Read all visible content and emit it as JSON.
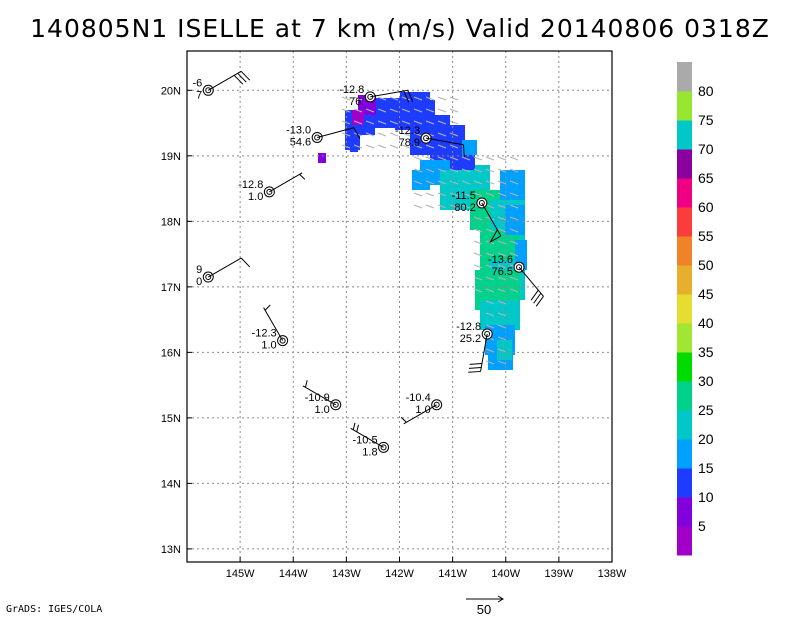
{
  "title": "140805N1  ISELLE  at 7 km (m/s)  Valid 20140806  0318Z",
  "footer": "GrADS: IGES/COLA",
  "scale_label": "50",
  "chart_data": {
    "type": "map",
    "title": "140805N1  ISELLE  at 7 km (m/s)  Valid 20140806  0318Z",
    "xlim": [
      -146,
      -138
    ],
    "ylim": [
      12.8,
      20.6
    ],
    "x_ticks": [
      -145,
      -144,
      -143,
      -142,
      -141,
      -140,
      -139,
      -138
    ],
    "x_tick_labels": [
      "145W",
      "144W",
      "143W",
      "142W",
      "141W",
      "140W",
      "139W",
      "138W"
    ],
    "y_ticks": [
      13,
      14,
      15,
      16,
      17,
      18,
      19,
      20
    ],
    "y_tick_labels": [
      "13N",
      "14N",
      "15N",
      "16N",
      "17N",
      "18N",
      "19N",
      "20N"
    ],
    "grid": true,
    "colorbar": {
      "levels": [
        "5",
        "10",
        "15",
        "20",
        "25",
        "30",
        "35",
        "40",
        "45",
        "50",
        "55",
        "60",
        "65",
        "70",
        "75",
        "80"
      ],
      "colors": [
        "#a000c8",
        "#8200dc",
        "#1e3cff",
        "#00a0ff",
        "#00c8c8",
        "#00d28c",
        "#00dc00",
        "#a0e632",
        "#e6dc32",
        "#e6af2d",
        "#f08228",
        "#fa3c3c",
        "#f00082",
        "#8c00a0",
        "#00c8c8",
        "#96e632",
        "#aaaaaa"
      ]
    },
    "observations": [
      {
        "lon": -145.6,
        "lat": 20.0,
        "temp": "-6",
        "val": "7",
        "wdir": 60,
        "flags": 0,
        "full": 3,
        "half": 0
      },
      {
        "lon": -142.55,
        "lat": 19.9,
        "temp": "-12.8",
        "val": "76.",
        "wdir": 80,
        "flags": 0,
        "full": 2,
        "half": 0
      },
      {
        "lon": -143.55,
        "lat": 19.28,
        "temp": "-13.0",
        "val": "54.6",
        "wdir": 75,
        "flags": 0,
        "full": 1,
        "half": 0
      },
      {
        "lon": -141.5,
        "lat": 19.27,
        "temp": "-12.3",
        "val": "78.9",
        "wdir": 100,
        "flags": 0,
        "full": 1,
        "half": 0
      },
      {
        "lon": -144.45,
        "lat": 18.45,
        "temp": "-12.8",
        "val": "1.0",
        "wdir": 60,
        "flags": 0,
        "full": 0,
        "half": 1
      },
      {
        "lon": -140.45,
        "lat": 18.28,
        "temp": "-11.5",
        "val": "80.2",
        "wdir": 150,
        "flags": 1,
        "full": 0,
        "half": 0
      },
      {
        "lon": -145.6,
        "lat": 17.15,
        "temp": "9",
        "val": "0",
        "wdir": 60,
        "flags": 0,
        "full": 1,
        "half": 0
      },
      {
        "lon": -139.75,
        "lat": 17.3,
        "temp": "-13.6",
        "val": "76.5",
        "wdir": 140,
        "flags": 0,
        "full": 3,
        "half": 0
      },
      {
        "lon": -140.35,
        "lat": 16.28,
        "temp": "-12.8",
        "val": "25.2",
        "wdir": 190,
        "flags": 0,
        "full": 3,
        "half": 0
      },
      {
        "lon": -144.2,
        "lat": 16.18,
        "temp": "-12.3",
        "val": "1.0",
        "wdir": 330,
        "flags": 0,
        "full": 0,
        "half": 1
      },
      {
        "lon": -143.2,
        "lat": 15.2,
        "temp": "-10.9",
        "val": "1.0",
        "wdir": 300,
        "flags": 0,
        "full": 0,
        "half": 1
      },
      {
        "lon": -141.3,
        "lat": 15.2,
        "temp": "-10.4",
        "val": "1.0",
        "wdir": 240,
        "flags": 0,
        "full": 0,
        "half": 1
      },
      {
        "lon": -142.3,
        "lat": 14.55,
        "temp": "-10.5",
        "val": "1.8",
        "wdir": 300,
        "flags": 0,
        "full": 0,
        "half": 2
      }
    ]
  }
}
